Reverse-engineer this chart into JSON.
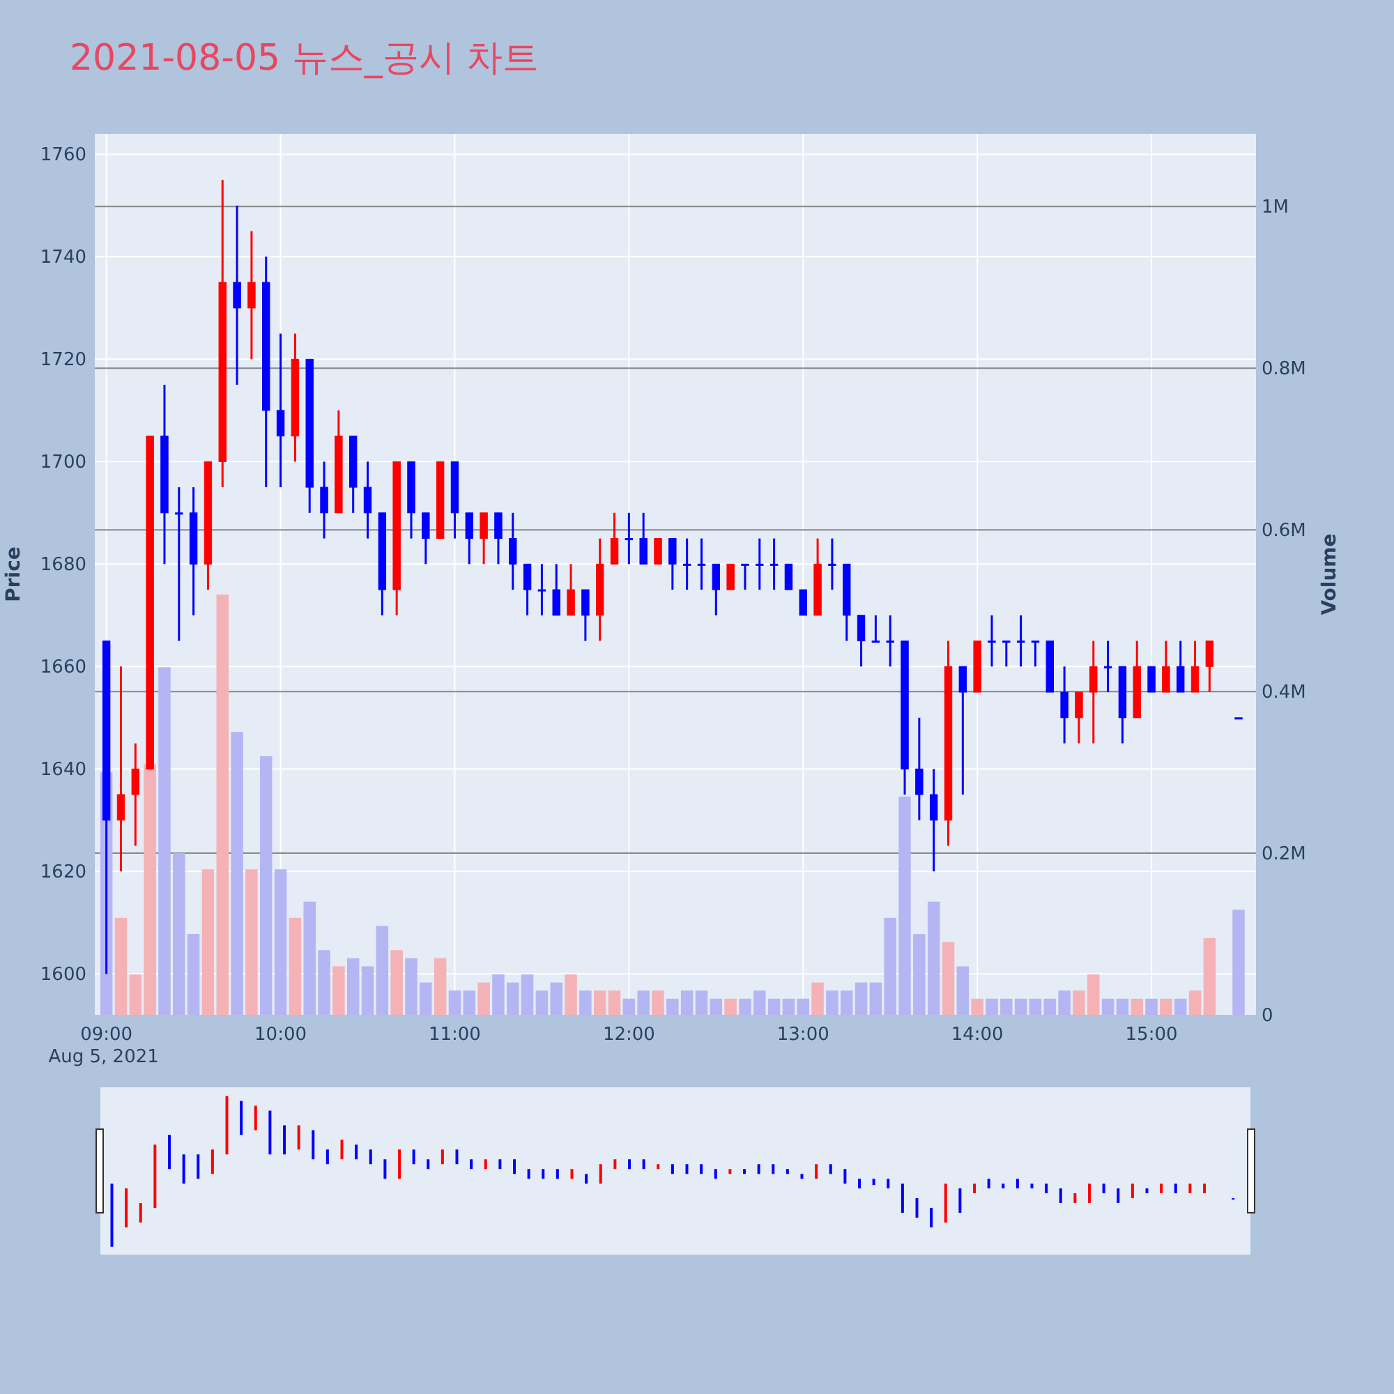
{
  "chart_data": {
    "type": "candlestick",
    "title": "2021-08-05 뉴스_공시 차트",
    "ylabel": "Price",
    "y2label": "Volume",
    "annotations": [
      "Aug 5, 2021"
    ],
    "x": [
      "2021-08-05T09:00",
      "2021-08-05T09:05",
      "2021-08-05T09:10",
      "2021-08-05T09:15",
      "2021-08-05T09:20",
      "2021-08-05T09:25",
      "2021-08-05T09:30",
      "2021-08-05T09:35",
      "2021-08-05T09:40",
      "2021-08-05T09:45",
      "2021-08-05T09:50",
      "2021-08-05T09:55",
      "2021-08-05T10:00",
      "2021-08-05T10:05",
      "2021-08-05T10:10",
      "2021-08-05T10:15",
      "2021-08-05T10:20",
      "2021-08-05T10:25",
      "2021-08-05T10:30",
      "2021-08-05T10:35",
      "2021-08-05T10:40",
      "2021-08-05T10:45",
      "2021-08-05T10:50",
      "2021-08-05T10:55",
      "2021-08-05T11:00",
      "2021-08-05T11:05",
      "2021-08-05T11:10",
      "2021-08-05T11:15",
      "2021-08-05T11:20",
      "2021-08-05T11:25",
      "2021-08-05T11:30",
      "2021-08-05T11:35",
      "2021-08-05T11:40",
      "2021-08-05T11:45",
      "2021-08-05T11:50",
      "2021-08-05T11:55",
      "2021-08-05T12:00",
      "2021-08-05T12:05",
      "2021-08-05T12:10",
      "2021-08-05T12:15",
      "2021-08-05T12:20",
      "2021-08-05T12:25",
      "2021-08-05T12:30",
      "2021-08-05T12:35",
      "2021-08-05T12:40",
      "2021-08-05T12:45",
      "2021-08-05T12:50",
      "2021-08-05T12:55",
      "2021-08-05T13:00",
      "2021-08-05T13:05",
      "2021-08-05T13:10",
      "2021-08-05T13:15",
      "2021-08-05T13:20",
      "2021-08-05T13:25",
      "2021-08-05T13:30",
      "2021-08-05T13:35",
      "2021-08-05T13:40",
      "2021-08-05T13:45",
      "2021-08-05T13:50",
      "2021-08-05T13:55",
      "2021-08-05T14:00",
      "2021-08-05T14:05",
      "2021-08-05T14:10",
      "2021-08-05T14:15",
      "2021-08-05T14:20",
      "2021-08-05T14:25",
      "2021-08-05T14:30",
      "2021-08-05T14:35",
      "2021-08-05T14:40",
      "2021-08-05T14:45",
      "2021-08-05T14:50",
      "2021-08-05T14:55",
      "2021-08-05T15:00",
      "2021-08-05T15:05",
      "2021-08-05T15:10",
      "2021-08-05T15:15",
      "2021-08-05T15:20",
      "2021-08-05T15:30"
    ],
    "ohlc": [
      [
        1665,
        1665,
        1600,
        1630
      ],
      [
        1630,
        1660,
        1620,
        1635
      ],
      [
        1635,
        1645,
        1625,
        1640
      ],
      [
        1640,
        1705,
        1640,
        1705
      ],
      [
        1705,
        1715,
        1680,
        1690
      ],
      [
        1690,
        1695,
        1665,
        1690
      ],
      [
        1690,
        1695,
        1670,
        1680
      ],
      [
        1680,
        1700,
        1675,
        1700
      ],
      [
        1700,
        1755,
        1695,
        1735
      ],
      [
        1735,
        1750,
        1715,
        1730
      ],
      [
        1730,
        1745,
        1720,
        1735
      ],
      [
        1735,
        1740,
        1695,
        1710
      ],
      [
        1710,
        1725,
        1695,
        1705
      ],
      [
        1705,
        1725,
        1700,
        1720
      ],
      [
        1720,
        1720,
        1690,
        1695
      ],
      [
        1695,
        1700,
        1685,
        1690
      ],
      [
        1690,
        1710,
        1690,
        1705
      ],
      [
        1705,
        1705,
        1690,
        1695
      ],
      [
        1695,
        1700,
        1685,
        1690
      ],
      [
        1690,
        1690,
        1670,
        1675
      ],
      [
        1675,
        1700,
        1670,
        1700
      ],
      [
        1700,
        1700,
        1685,
        1690
      ],
      [
        1690,
        1690,
        1680,
        1685
      ],
      [
        1685,
        1700,
        1685,
        1700
      ],
      [
        1700,
        1700,
        1685,
        1690
      ],
      [
        1690,
        1690,
        1680,
        1685
      ],
      [
        1685,
        1690,
        1680,
        1690
      ],
      [
        1690,
        1690,
        1680,
        1685
      ],
      [
        1685,
        1690,
        1675,
        1680
      ],
      [
        1680,
        1680,
        1670,
        1675
      ],
      [
        1675,
        1680,
        1670,
        1675
      ],
      [
        1675,
        1680,
        1670,
        1670
      ],
      [
        1670,
        1680,
        1670,
        1675
      ],
      [
        1675,
        1675,
        1665,
        1670
      ],
      [
        1670,
        1685,
        1665,
        1680
      ],
      [
        1680,
        1690,
        1680,
        1685
      ],
      [
        1685,
        1690,
        1680,
        1685
      ],
      [
        1685,
        1690,
        1680,
        1680
      ],
      [
        1680,
        1685,
        1680,
        1685
      ],
      [
        1685,
        1685,
        1675,
        1680
      ],
      [
        1680,
        1685,
        1675,
        1680
      ],
      [
        1680,
        1685,
        1675,
        1680
      ],
      [
        1680,
        1680,
        1670,
        1675
      ],
      [
        1675,
        1680,
        1675,
        1680
      ],
      [
        1680,
        1680,
        1675,
        1680
      ],
      [
        1680,
        1685,
        1675,
        1680
      ],
      [
        1680,
        1685,
        1675,
        1680
      ],
      [
        1680,
        1680,
        1675,
        1675
      ],
      [
        1675,
        1675,
        1670,
        1670
      ],
      [
        1670,
        1685,
        1670,
        1680
      ],
      [
        1680,
        1685,
        1675,
        1680
      ],
      [
        1680,
        1680,
        1665,
        1670
      ],
      [
        1670,
        1670,
        1660,
        1665
      ],
      [
        1665,
        1670,
        1665,
        1665
      ],
      [
        1665,
        1670,
        1660,
        1665
      ],
      [
        1665,
        1665,
        1635,
        1640
      ],
      [
        1640,
        1650,
        1630,
        1635
      ],
      [
        1635,
        1640,
        1620,
        1630
      ],
      [
        1630,
        1665,
        1625,
        1660
      ],
      [
        1660,
        1660,
        1635,
        1655
      ],
      [
        1655,
        1665,
        1655,
        1665
      ],
      [
        1665,
        1670,
        1660,
        1665
      ],
      [
        1665,
        1665,
        1660,
        1665
      ],
      [
        1665,
        1670,
        1660,
        1665
      ],
      [
        1665,
        1665,
        1660,
        1665
      ],
      [
        1665,
        1665,
        1655,
        1655
      ],
      [
        1655,
        1660,
        1645,
        1650
      ],
      [
        1650,
        1655,
        1645,
        1655
      ],
      [
        1655,
        1665,
        1645,
        1660
      ],
      [
        1660,
        1665,
        1655,
        1660
      ],
      [
        1660,
        1660,
        1645,
        1650
      ],
      [
        1650,
        1665,
        1650,
        1660
      ],
      [
        1660,
        1660,
        1655,
        1655
      ],
      [
        1655,
        1665,
        1655,
        1660
      ],
      [
        1660,
        1665,
        1655,
        1655
      ],
      [
        1655,
        1665,
        1655,
        1660
      ],
      [
        1660,
        1665,
        1655,
        1665
      ],
      [
        1650,
        1650,
        1650,
        1650
      ]
    ],
    "series": [
      {
        "type": "bar",
        "axis": "y2",
        "values": [
          300000,
          120000,
          50000,
          310000,
          430000,
          200000,
          100000,
          180000,
          520000,
          350000,
          180000,
          320000,
          180000,
          120000,
          140000,
          80000,
          60000,
          70000,
          60000,
          110000,
          80000,
          70000,
          40000,
          70000,
          30000,
          30000,
          40000,
          50000,
          40000,
          50000,
          30000,
          40000,
          50000,
          30000,
          30000,
          30000,
          20000,
          30000,
          30000,
          20000,
          30000,
          30000,
          20000,
          20000,
          20000,
          30000,
          20000,
          20000,
          20000,
          40000,
          30000,
          30000,
          40000,
          40000,
          120000,
          270000,
          100000,
          140000,
          90000,
          60000,
          20000,
          20000,
          20000,
          20000,
          20000,
          20000,
          30000,
          30000,
          50000,
          20000,
          20000,
          20000,
          20000,
          20000,
          20000,
          30000,
          95000,
          130000
        ],
        "colors": [
          "#b4b6f3",
          "#f5b2b6",
          "#f5b2b6",
          "#f5b2b6",
          "#b4b6f3",
          "#b4b6f3",
          "#b4b6f3",
          "#f5b2b6",
          "#f5b2b6",
          "#b4b6f3",
          "#f5b2b6",
          "#b4b6f3",
          "#b4b6f3",
          "#f5b2b6",
          "#b4b6f3",
          "#b4b6f3",
          "#f5b2b6",
          "#b4b6f3",
          "#b4b6f3",
          "#b4b6f3",
          "#f5b2b6",
          "#b4b6f3",
          "#b4b6f3",
          "#f5b2b6",
          "#b4b6f3",
          "#b4b6f3",
          "#f5b2b6",
          "#b4b6f3",
          "#b4b6f3",
          "#b4b6f3",
          "#b4b6f3",
          "#b4b6f3",
          "#f5b2b6",
          "#b4b6f3",
          "#f5b2b6",
          "#f5b2b6",
          "#b4b6f3",
          "#b4b6f3",
          "#f5b2b6",
          "#b4b6f3",
          "#b4b6f3",
          "#b4b6f3",
          "#b4b6f3",
          "#f5b2b6",
          "#b4b6f3",
          "#b4b6f3",
          "#b4b6f3",
          "#b4b6f3",
          "#b4b6f3",
          "#f5b2b6",
          "#b4b6f3",
          "#b4b6f3",
          "#b4b6f3",
          "#b4b6f3",
          "#b4b6f3",
          "#b4b6f3",
          "#b4b6f3",
          "#b4b6f3",
          "#f5b2b6",
          "#b4b6f3",
          "#f5b2b6",
          "#b4b6f3",
          "#b4b6f3",
          "#b4b6f3",
          "#b4b6f3",
          "#b4b6f3",
          "#b4b6f3",
          "#f5b2b6",
          "#f5b2b6",
          "#b4b6f3",
          "#b4b6f3",
          "#f5b2b6",
          "#b4b6f3",
          "#f5b2b6",
          "#b4b6f3",
          "#f5b2b6",
          "#f5b2b6",
          "#b4b6f3"
        ]
      }
    ],
    "xlim": [
      "2021-08-05T08:56",
      "2021-08-05T15:36"
    ],
    "xticks": [
      {
        "value": "2021-08-05T09:00",
        "label": "09:00"
      },
      {
        "value": "2021-08-05T10:00",
        "label": "10:00"
      },
      {
        "value": "2021-08-05T11:00",
        "label": "11:00"
      },
      {
        "value": "2021-08-05T12:00",
        "label": "12:00"
      },
      {
        "value": "2021-08-05T13:00",
        "label": "13:00"
      },
      {
        "value": "2021-08-05T14:00",
        "label": "14:00"
      },
      {
        "value": "2021-08-05T15:00",
        "label": "15:00"
      }
    ],
    "ylim": [
      1592,
      1764
    ],
    "yticks": [
      1600,
      1620,
      1640,
      1660,
      1680,
      1700,
      1720,
      1740,
      1760
    ],
    "y2lim": [
      0,
      1090000
    ],
    "y2ticks": [
      0,
      {
        "value": 200000,
        "label": "0.2M"
      },
      {
        "value": 400000,
        "label": "0.4M"
      },
      {
        "value": 600000,
        "label": "0.6M"
      },
      {
        "value": 800000,
        "label": "0.8M"
      },
      {
        "value": 1000000,
        "label": "1M"
      }
    ],
    "grid": true
  }
}
